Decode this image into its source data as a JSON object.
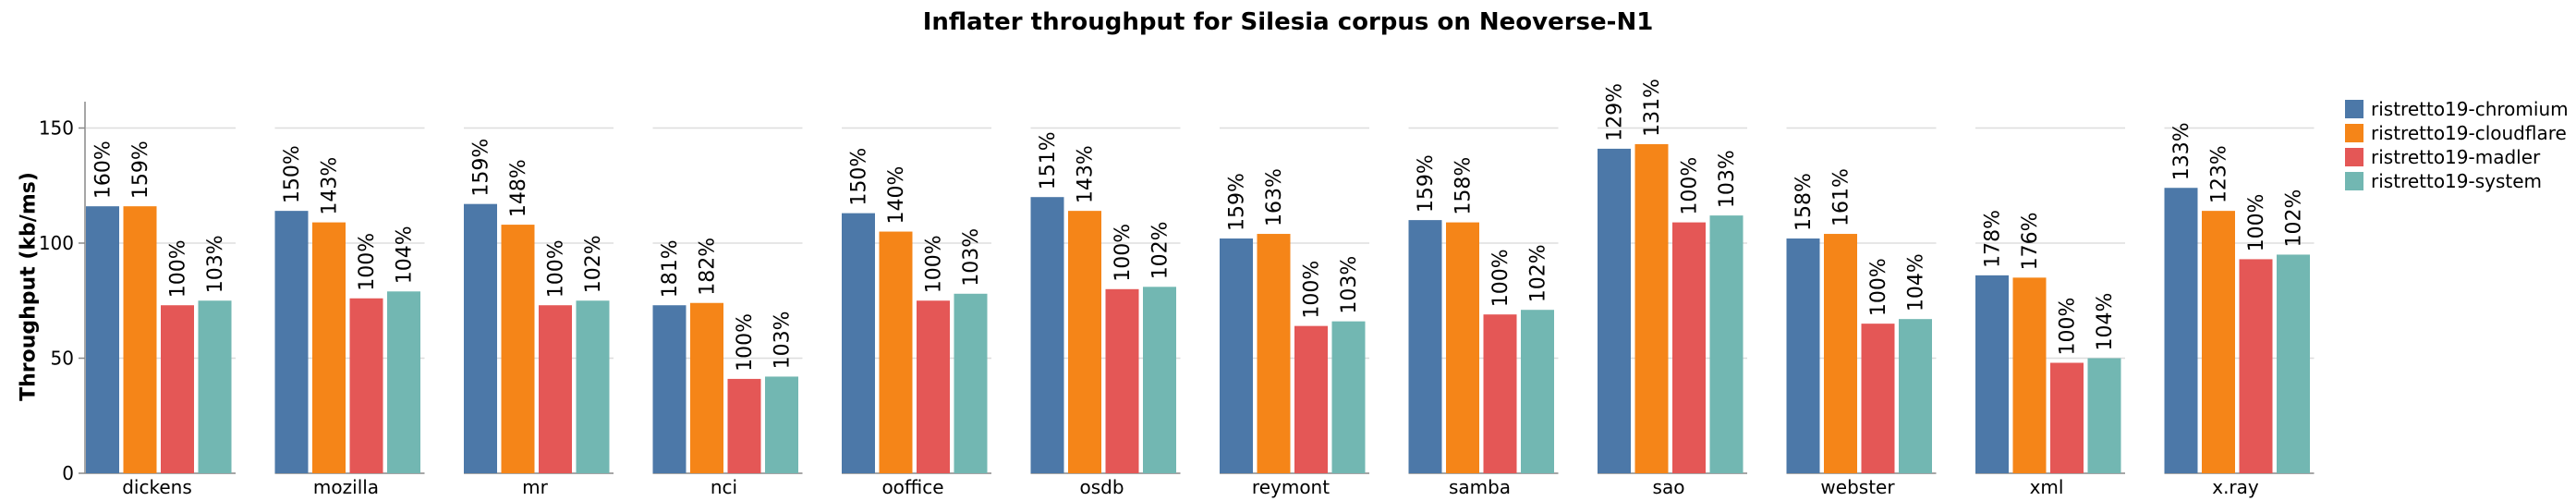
{
  "chart_data": {
    "type": "bar",
    "title": "Inflater throughput for Silesia corpus on Neoverse-N1",
    "ylabel": "Throughput (kb/ms)",
    "xlabel": "",
    "ylim": [
      0,
      160
    ],
    "yticks": [
      0,
      50,
      100,
      150
    ],
    "grid": true,
    "legend_position": "right",
    "categories": [
      "dickens",
      "mozilla",
      "mr",
      "nci",
      "ooffice",
      "osdb",
      "reymont",
      "samba",
      "sao",
      "webster",
      "xml",
      "x.ray"
    ],
    "series": [
      {
        "name": "ristretto19-chromium",
        "color": "#4c78a8",
        "values": [
          116,
          114,
          117,
          73,
          113,
          120,
          102,
          110,
          141,
          102,
          86,
          124
        ],
        "labels": [
          "160%",
          "150%",
          "159%",
          "181%",
          "150%",
          "151%",
          "159%",
          "159%",
          "129%",
          "158%",
          "178%",
          "133%"
        ]
      },
      {
        "name": "ristretto19-cloudflare",
        "color": "#f58518",
        "values": [
          116,
          109,
          108,
          74,
          105,
          114,
          104,
          109,
          143,
          104,
          85,
          114
        ],
        "labels": [
          "159%",
          "143%",
          "148%",
          "182%",
          "140%",
          "143%",
          "163%",
          "158%",
          "131%",
          "161%",
          "176%",
          "123%"
        ]
      },
      {
        "name": "ristretto19-madler",
        "color": "#e45756",
        "values": [
          73,
          76,
          73,
          41,
          75,
          80,
          64,
          69,
          109,
          65,
          48,
          93
        ],
        "labels": [
          "100%",
          "100%",
          "100%",
          "100%",
          "100%",
          "100%",
          "100%",
          "100%",
          "100%",
          "100%",
          "100%",
          "100%"
        ]
      },
      {
        "name": "ristretto19-system",
        "color": "#72b7b2",
        "values": [
          75,
          79,
          75,
          42,
          78,
          81,
          66,
          71,
          112,
          67,
          50,
          95
        ],
        "labels": [
          "103%",
          "104%",
          "102%",
          "103%",
          "103%",
          "102%",
          "103%",
          "102%",
          "103%",
          "104%",
          "104%",
          "102%"
        ]
      }
    ]
  }
}
